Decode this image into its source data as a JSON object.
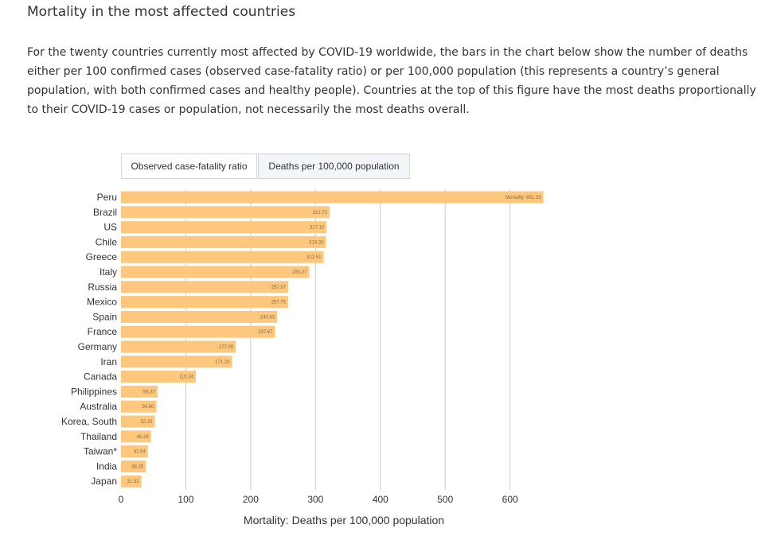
{
  "page": {
    "title": "Mortality in the most affected countries",
    "description": "For the twenty countries currently most affected by COVID-19 worldwide, the bars in the chart below show the number of deaths either per 100 confirmed cases (observed case-fatality ratio) or per 100,000 population (this represents a country’s general population, with both confirmed cases and healthy people). Countries at the top of this figure have the most deaths proportionally to their COVID-19 cases or population, not necessarily the most deaths overall."
  },
  "tabs": [
    {
      "label": "Observed case-fatality ratio",
      "selected": false
    },
    {
      "label": "Deaths per 100,000 population",
      "selected": true
    }
  ],
  "colors": {
    "bar": "#fdc77e",
    "grid": "#cccccc",
    "selected_tab_bg": "#f3f6f9"
  },
  "chart_data": {
    "type": "bar",
    "orientation": "horizontal",
    "categories": [
      "Peru",
      "Brazil",
      "US",
      "Chile",
      "Greece",
      "Italy",
      "Russia",
      "Mexico",
      "Spain",
      "France",
      "Germany",
      "Iran",
      "Canada",
      "Philippines",
      "Australia",
      "Korea, South",
      "Thailand",
      "Taiwan*",
      "India",
      "Japan"
    ],
    "values": [
      651.33,
      321.72,
      317.1,
      316.2,
      312.51,
      290.27,
      257.97,
      257.75,
      240.83,
      237.67,
      177.05,
      171.23,
      115.34,
      56.37,
      54.6,
      52.2,
      46.28,
      41.54,
      38.25,
      31.31
    ],
    "data_labels": [
      "Mortality: 651.33",
      "321.72",
      "317.10",
      "316.20",
      "312.51",
      "290.27",
      "257.97",
      "257.75",
      "240.83",
      "237.67",
      "177.05",
      "171.23",
      "115.34",
      "56.37",
      "54.60",
      "52.20",
      "46.28",
      "41.54",
      "38.25",
      "31.31"
    ],
    "xlabel": "Mortality: Deaths per 100,000 population",
    "ylabel": "",
    "xlim": [
      0,
      650
    ],
    "xticks": [
      0,
      100,
      200,
      300,
      400,
      500,
      600
    ],
    "grid": true
  }
}
